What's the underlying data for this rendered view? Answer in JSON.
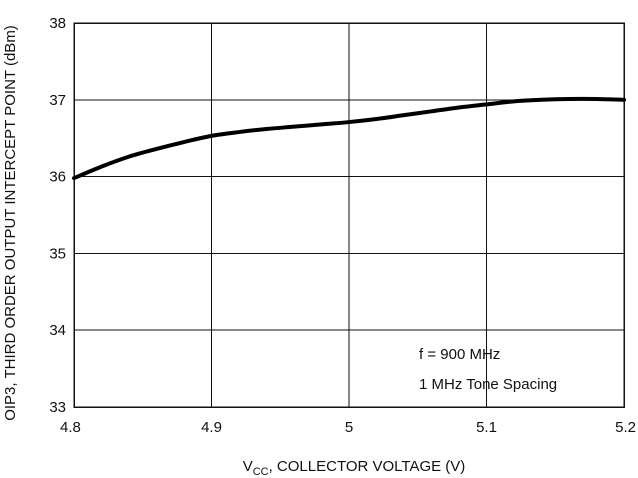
{
  "chart_data": {
    "type": "line",
    "title": "",
    "xlabel_main": "V",
    "xlabel_sub": "CC",
    "xlabel_rest": ", COLLECTOR VOLTAGE (V)",
    "ylabel": "OIP3, THIRD ORDER OUTPUT INTERCEPT POINT (dBm)",
    "xlim": [
      4.8,
      5.2
    ],
    "ylim": [
      33,
      38
    ],
    "x_ticks": [
      "4.8",
      "4.9",
      "5",
      "5.1",
      "5.2"
    ],
    "y_ticks": [
      "33",
      "34",
      "35",
      "36",
      "37",
      "38"
    ],
    "grid": true,
    "annotations": [
      "f = 900 MHz",
      "1 MHz Tone Spacing"
    ],
    "series": [
      {
        "x": [
          4.8,
          4.82,
          4.84,
          4.86,
          4.88,
          4.9,
          4.92,
          4.94,
          4.96,
          4.98,
          5.0,
          5.02,
          5.04,
          5.06,
          5.08,
          5.1,
          5.12,
          5.14,
          5.16,
          5.18,
          5.2
        ],
        "y": [
          35.98,
          36.13,
          36.26,
          36.36,
          36.45,
          36.53,
          36.58,
          36.62,
          36.65,
          36.68,
          36.71,
          36.75,
          36.8,
          36.85,
          36.9,
          36.94,
          36.98,
          37.0,
          37.01,
          37.01,
          37.0
        ]
      }
    ]
  }
}
